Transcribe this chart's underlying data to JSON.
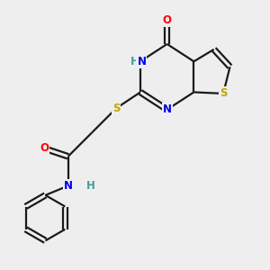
{
  "background_color": "#eeeeee",
  "bond_color": "#1a1a1a",
  "atom_colors": {
    "O": "#ff0000",
    "N": "#0000ee",
    "S": "#bbaa00",
    "H": "#4a9a9a"
  },
  "figsize": [
    3.0,
    3.0
  ],
  "dpi": 100,
  "lw": 1.6,
  "fs": 8.5
}
